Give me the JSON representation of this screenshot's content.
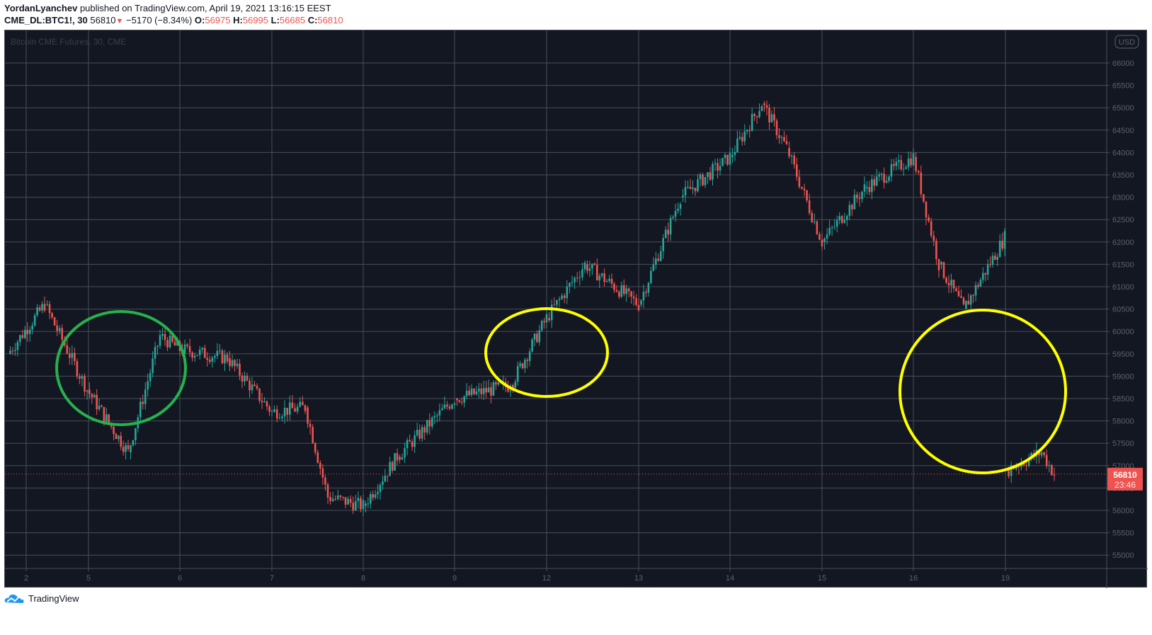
{
  "header": {
    "author": "YordanLyanchev",
    "published_text": "published on TradingView.com, April 19, 2021 13:16:15 EEST",
    "symbol": "CME_DL:BTC1!, 30",
    "last": "56810",
    "change": "−5170 (−8.34%)",
    "o_label": "O:",
    "o": "56975",
    "h_label": "H:",
    "h": "56995",
    "l_label": "L:",
    "l": "56685",
    "c_label": "C:",
    "c": "56810"
  },
  "chart": {
    "watermark": "Bitcoin CME Futures, 30, CME",
    "currency_badge": "USD",
    "last_price_label": "56810",
    "countdown_label": "23:46",
    "colors": {
      "background": "#131722",
      "grid": "#4a4e59",
      "up": "#26a69a",
      "down": "#ef5350",
      "axis_text": "#5d606b",
      "green_circle": "#27b14c",
      "yellow_circle": "#ffff00"
    }
  },
  "footer": {
    "brand": "TradingView"
  },
  "chart_data": {
    "type": "candlestick",
    "title": "Bitcoin CME Futures, 30, CME",
    "xlabel": "",
    "ylabel": "USD",
    "ylim": [
      54700,
      66700
    ],
    "y_ticks": [
      55000,
      55500,
      56000,
      56500,
      57000,
      57500,
      58000,
      58500,
      59000,
      59500,
      60000,
      60500,
      61000,
      61500,
      62000,
      62500,
      63000,
      63500,
      64000,
      64500,
      65000,
      65500,
      66000
    ],
    "x_ticks": [
      "2",
      "5",
      "6",
      "7",
      "8",
      "9",
      "12",
      "13",
      "14",
      "15",
      "16",
      "19"
    ],
    "grid": true,
    "last_price": 56810,
    "approx_close_path": [
      {
        "x": "2",
        "price": 59500
      },
      {
        "x": "2.5",
        "price": 60600
      },
      {
        "x": "5 (open)",
        "price": 58700
      },
      {
        "x": "5.4",
        "price": 57300
      },
      {
        "x": "5.8",
        "price": 59900
      },
      {
        "x": "6",
        "price": 59600
      },
      {
        "x": "6.5",
        "price": 59400
      },
      {
        "x": "7",
        "price": 58200
      },
      {
        "x": "7.5",
        "price": 58300
      },
      {
        "x": "7.7",
        "price": 56300
      },
      {
        "x": "8",
        "price": 56100
      },
      {
        "x": "8.4",
        "price": 57200
      },
      {
        "x": "9",
        "price": 58500
      },
      {
        "x": "9.6",
        "price": 58800
      },
      {
        "x": "12 (open)",
        "price": 60300
      },
      {
        "x": "12.4",
        "price": 61500
      },
      {
        "x": "13",
        "price": 60600
      },
      {
        "x": "13.5",
        "price": 63000
      },
      {
        "x": "14",
        "price": 63900
      },
      {
        "x": "14.4",
        "price": 65100
      },
      {
        "x": "14.7",
        "price": 64100
      },
      {
        "x": "15",
        "price": 62000
      },
      {
        "x": "15.5",
        "price": 63200
      },
      {
        "x": "16",
        "price": 63900
      },
      {
        "x": "16.4",
        "price": 61500
      },
      {
        "x": "16.6",
        "price": 60500
      },
      {
        "x": "18.9",
        "price": 62100
      },
      {
        "x": "19 (open)",
        "price": 56900
      },
      {
        "x": "19.4",
        "price": 57300
      },
      {
        "x": "19.5",
        "price": 56810
      }
    ],
    "annotations": [
      {
        "shape": "ellipse",
        "color": "green",
        "around": "5"
      },
      {
        "shape": "ellipse",
        "color": "yellow",
        "around": "9-12 gap"
      },
      {
        "shape": "ellipse",
        "color": "yellow",
        "around": "16-19 gap"
      }
    ]
  }
}
